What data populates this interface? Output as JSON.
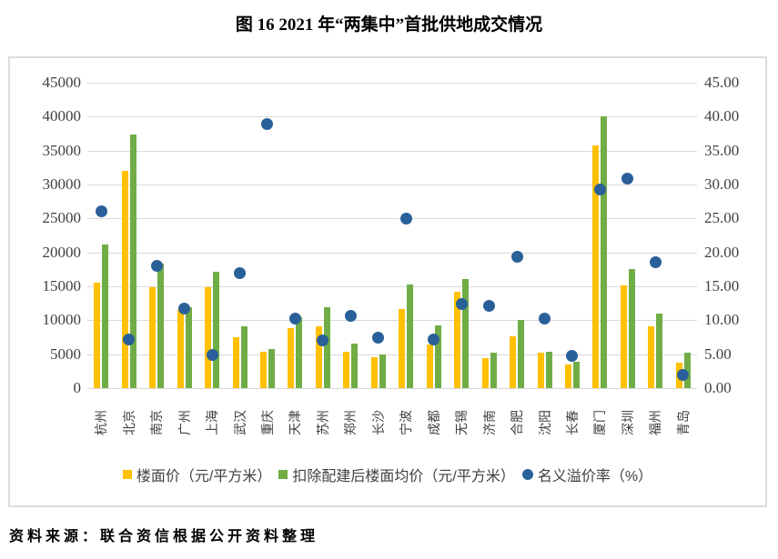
{
  "title": "图 16  2021 年“两集中”首批供地成交情况",
  "source": "资料来源：联合资信根据公开资料整理",
  "colors": {
    "bar_floor_price": "#FFC000",
    "bar_net_price": "#70AD47",
    "dot_premium": "#2A6099",
    "grid": "#D9D9D9",
    "axis_text": "#404040",
    "box_border": "#DCDCDC"
  },
  "chart_data": {
    "type": "bar",
    "subtype": "combo bar + scatter, dual axis",
    "categories": [
      "杭州",
      "北京",
      "南京",
      "广州",
      "上海",
      "武汉",
      "重庆",
      "天津",
      "苏州",
      "郑州",
      "长沙",
      "宁波",
      "成都",
      "无锡",
      "济南",
      "合肥",
      "沈阳",
      "长春",
      "厦门",
      "深圳",
      "福州",
      "青岛"
    ],
    "series": [
      {
        "name": "楼面价（元/平方米）",
        "type": "bar",
        "marker": "square",
        "color": "#FFC000",
        "axis": "left",
        "values": [
          15500,
          32000,
          14800,
          11500,
          14800,
          7500,
          5300,
          8900,
          9100,
          5400,
          4600,
          11700,
          6400,
          14200,
          4400,
          7700,
          5200,
          3500,
          35800,
          15200,
          9100,
          3800
        ]
      },
      {
        "name": "扣除配建后楼面均价（元/平方米）",
        "type": "bar",
        "marker": "square",
        "color": "#70AD47",
        "axis": "left",
        "values": [
          21100,
          37300,
          18400,
          11900,
          17200,
          9100,
          5700,
          10400,
          11900,
          6500,
          5000,
          15300,
          9200,
          16100,
          5200,
          10000,
          5300,
          3900,
          40000,
          17600,
          11000,
          5200
        ]
      },
      {
        "name": "名义溢价率（%）",
        "type": "scatter",
        "marker": "circle",
        "color": "#2A6099",
        "axis": "right",
        "values": [
          26.1,
          7.1,
          18.0,
          11.7,
          4.9,
          16.9,
          38.9,
          10.3,
          7.0,
          10.7,
          7.5,
          25.0,
          7.2,
          12.4,
          12.1,
          19.3,
          10.3,
          4.7,
          29.3,
          30.9,
          18.5,
          2.0
        ]
      }
    ],
    "left_axis": {
      "min": 0,
      "max": 45000,
      "step": 5000,
      "tick_labels": [
        "45000",
        "40000",
        "35000",
        "30000",
        "25000",
        "20000",
        "15000",
        "10000",
        "5000",
        "0"
      ]
    },
    "right_axis": {
      "min": 0,
      "max": 45,
      "step": 5,
      "tick_labels": [
        "45.00",
        "40.00",
        "35.00",
        "30.00",
        "25.00",
        "20.00",
        "15.00",
        "10.00",
        "5.00",
        "0.00"
      ]
    },
    "grid": true,
    "legend_position": "bottom"
  }
}
